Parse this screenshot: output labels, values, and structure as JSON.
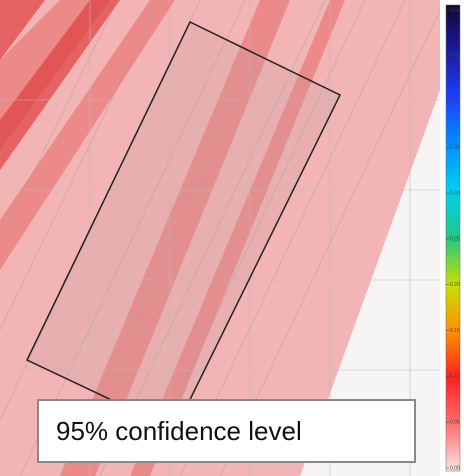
{
  "colorbar": {
    "ticks": [
      {
        "value": 0.5,
        "label": "0.50"
      },
      {
        "value": 0.45,
        "label": "0.45"
      },
      {
        "value": 0.4,
        "label": "0.40"
      },
      {
        "value": 0.35,
        "label": "0.35"
      },
      {
        "value": 0.3,
        "label": "0.30"
      },
      {
        "value": 0.25,
        "label": "0.25"
      },
      {
        "value": 0.2,
        "label": "0.20"
      },
      {
        "value": 0.15,
        "label": "0.15"
      },
      {
        "value": 0.1,
        "label": "0.10"
      },
      {
        "value": 0.05,
        "label": "0.05"
      },
      {
        "value": 0,
        "label": "0.00"
      }
    ],
    "range": [
      0,
      0.5
    ]
  },
  "caption": "95% confidence level"
}
